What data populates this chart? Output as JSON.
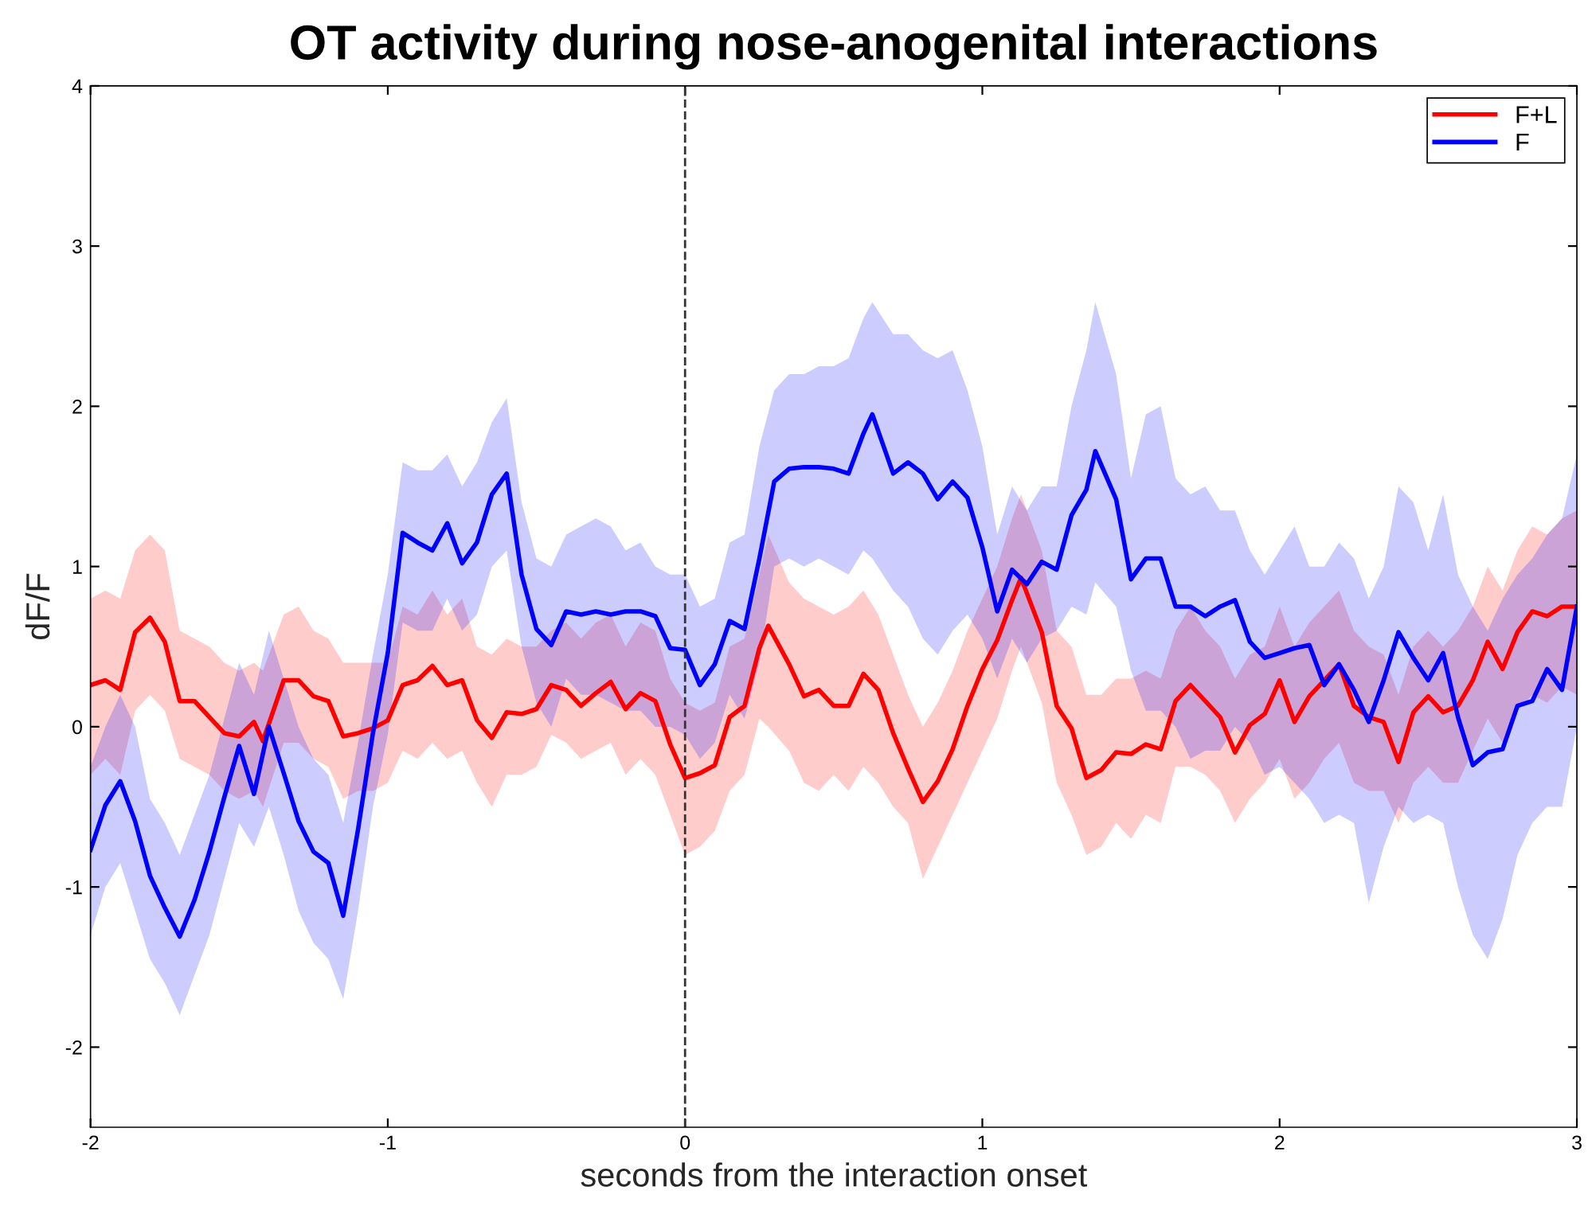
{
  "chart_data": {
    "type": "line",
    "title": "OT activity during nose-anogenital interactions",
    "xlabel": "seconds from the interaction onset",
    "ylabel": "dF/F",
    "xlim": [
      -2,
      3
    ],
    "xticks": [
      -2,
      -1,
      0,
      1,
      2,
      3
    ],
    "ylim": [
      -2.5,
      4
    ],
    "yticks": [
      -2,
      -1,
      0,
      1,
      2,
      3,
      4
    ],
    "grid": false,
    "legend": "top right",
    "line_style": "solid",
    "marker": "none",
    "ref_lines": [
      {
        "axis": "x",
        "value": 0,
        "color": "#333333",
        "line_style": "dashed"
      }
    ],
    "series": [
      {
        "name": "F+L",
        "color": "#ff0000",
        "x": [
          -2,
          -1.95,
          -1.9,
          -1.85,
          -1.8,
          -1.75,
          -1.7,
          -1.65,
          -1.6,
          -1.55,
          -1.5,
          -1.45,
          -1.42,
          -1.35,
          -1.3,
          -1.25,
          -1.2,
          -1.15,
          -1.1,
          -1.05,
          -1,
          -0.95,
          -0.9,
          -0.85,
          -0.8,
          -0.75,
          -0.7,
          -0.65,
          -0.6,
          -0.55,
          -0.5,
          -0.45,
          -0.4,
          -0.35,
          -0.3,
          -0.25,
          -0.2,
          -0.15,
          -0.1,
          -0.05,
          0,
          0.05,
          0.1,
          0.15,
          0.2,
          0.25,
          0.28,
          0.35,
          0.4,
          0.45,
          0.5,
          0.55,
          0.6,
          0.65,
          0.7,
          0.75,
          0.8,
          0.85,
          0.9,
          0.95,
          1,
          1.05,
          1.1,
          1.13,
          1.2,
          1.25,
          1.3,
          1.35,
          1.4,
          1.45,
          1.5,
          1.55,
          1.6,
          1.65,
          1.7,
          1.75,
          1.8,
          1.85,
          1.9,
          1.95,
          2,
          2.05,
          2.1,
          2.15,
          2.2,
          2.25,
          2.3,
          2.35,
          2.4,
          2.45,
          2.5,
          2.55,
          2.6,
          2.65,
          2.7,
          2.75,
          2.8,
          2.85,
          2.9,
          2.95,
          3
        ],
        "values": [
          0.26,
          0.29,
          0.23,
          0.59,
          0.68,
          0.53,
          0.16,
          0.16,
          0.06,
          -0.04,
          -0.06,
          0.03,
          -0.09,
          0.29,
          0.29,
          0.19,
          0.16,
          -0.06,
          -0.04,
          -0.01,
          0.04,
          0.26,
          0.29,
          0.38,
          0.26,
          0.29,
          0.04,
          -0.07,
          0.09,
          0.08,
          0.11,
          0.26,
          0.23,
          0.13,
          0.21,
          0.28,
          0.11,
          0.21,
          0.16,
          -0.11,
          -0.32,
          -0.29,
          -0.24,
          0.06,
          0.13,
          0.49,
          0.63,
          0.39,
          0.19,
          0.23,
          0.13,
          0.13,
          0.33,
          0.23,
          -0.04,
          -0.26,
          -0.47,
          -0.34,
          -0.14,
          0.13,
          0.36,
          0.54,
          0.79,
          0.93,
          0.59,
          0.13,
          -0.01,
          -0.32,
          -0.27,
          -0.16,
          -0.17,
          -0.11,
          -0.14,
          0.16,
          0.26,
          0.16,
          0.06,
          -0.16,
          0.01,
          0.08,
          0.29,
          0.03,
          0.19,
          0.29,
          0.39,
          0.13,
          0.06,
          0.03,
          -0.22,
          0.09,
          0.19,
          0.09,
          0.13,
          0.29,
          0.53,
          0.36,
          0.59,
          0.72,
          0.69,
          0.75,
          0.75
        ],
        "upper": [
          0.8,
          0.85,
          0.8,
          1.1,
          1.2,
          1.1,
          0.6,
          0.55,
          0.5,
          0.4,
          0.35,
          0.4,
          0.35,
          0.7,
          0.75,
          0.6,
          0.55,
          0.4,
          0.4,
          0.4,
          0.4,
          0.75,
          0.7,
          0.85,
          0.7,
          0.8,
          0.5,
          0.45,
          0.55,
          0.5,
          0.5,
          0.6,
          0.65,
          0.55,
          0.65,
          0.7,
          0.5,
          0.65,
          0.6,
          0.3,
          0.15,
          0.1,
          0.15,
          0.5,
          0.55,
          0.95,
          1.2,
          0.9,
          0.8,
          0.75,
          0.7,
          0.75,
          0.85,
          0.7,
          0.45,
          0.2,
          0.0,
          0.15,
          0.35,
          0.6,
          0.8,
          1.0,
          1.3,
          1.45,
          1.1,
          0.6,
          0.5,
          0.2,
          0.2,
          0.3,
          0.3,
          0.35,
          0.3,
          0.6,
          0.75,
          0.6,
          0.5,
          0.3,
          0.45,
          0.5,
          0.75,
          0.5,
          0.65,
          0.75,
          0.85,
          0.6,
          0.5,
          0.45,
          0.2,
          0.5,
          0.6,
          0.5,
          0.6,
          0.75,
          1.0,
          0.85,
          1.1,
          1.25,
          1.2,
          1.3,
          1.35
        ],
        "lower": [
          -0.3,
          -0.2,
          -0.3,
          0.1,
          0.2,
          0.1,
          -0.2,
          -0.25,
          -0.3,
          -0.4,
          -0.45,
          -0.4,
          -0.5,
          -0.1,
          -0.1,
          -0.2,
          -0.25,
          -0.45,
          -0.4,
          -0.4,
          -0.35,
          -0.15,
          -0.2,
          -0.1,
          -0.2,
          -0.15,
          -0.35,
          -0.5,
          -0.3,
          -0.3,
          -0.25,
          -0.05,
          -0.1,
          -0.2,
          -0.15,
          -0.1,
          -0.3,
          -0.2,
          -0.3,
          -0.55,
          -0.8,
          -0.75,
          -0.65,
          -0.4,
          -0.3,
          0.05,
          0.0,
          -0.15,
          -0.35,
          -0.4,
          -0.3,
          -0.4,
          -0.25,
          -0.35,
          -0.5,
          -0.6,
          -0.95,
          -0.75,
          -0.55,
          -0.35,
          -0.15,
          0.05,
          0.35,
          0.5,
          0.15,
          -0.35,
          -0.55,
          -0.8,
          -0.75,
          -0.6,
          -0.7,
          -0.55,
          -0.6,
          -0.25,
          -0.25,
          -0.3,
          -0.4,
          -0.6,
          -0.45,
          -0.35,
          -0.2,
          -0.45,
          -0.35,
          -0.2,
          -0.1,
          -0.35,
          -0.4,
          -0.4,
          -0.6,
          -0.35,
          -0.25,
          -0.35,
          -0.35,
          -0.15,
          0.05,
          -0.1,
          0.1,
          0.2,
          0.15,
          0.25,
          0.2
        ]
      },
      {
        "name": "F",
        "color": "#0000ff",
        "x": [
          -2,
          -1.95,
          -1.9,
          -1.85,
          -1.8,
          -1.75,
          -1.7,
          -1.65,
          -1.6,
          -1.55,
          -1.5,
          -1.45,
          -1.4,
          -1.35,
          -1.3,
          -1.25,
          -1.2,
          -1.15,
          -1.1,
          -1.05,
          -1,
          -0.95,
          -0.9,
          -0.85,
          -0.8,
          -0.75,
          -0.7,
          -0.65,
          -0.6,
          -0.55,
          -0.5,
          -0.45,
          -0.4,
          -0.35,
          -0.3,
          -0.25,
          -0.2,
          -0.15,
          -0.1,
          -0.05,
          0,
          0.05,
          0.1,
          0.15,
          0.2,
          0.25,
          0.3,
          0.35,
          0.4,
          0.45,
          0.5,
          0.55,
          0.6,
          0.63,
          0.7,
          0.75,
          0.8,
          0.85,
          0.9,
          0.95,
          1,
          1.05,
          1.1,
          1.15,
          1.2,
          1.25,
          1.3,
          1.35,
          1.38,
          1.45,
          1.5,
          1.55,
          1.6,
          1.65,
          1.7,
          1.75,
          1.8,
          1.85,
          1.9,
          1.95,
          2,
          2.05,
          2.1,
          2.15,
          2.2,
          2.25,
          2.3,
          2.35,
          2.4,
          2.45,
          2.5,
          2.55,
          2.6,
          2.65,
          2.7,
          2.75,
          2.8,
          2.85,
          2.9,
          2.95,
          3
        ],
        "values": [
          -0.77,
          -0.49,
          -0.34,
          -0.59,
          -0.93,
          -1.13,
          -1.31,
          -1.08,
          -0.78,
          -0.44,
          -0.12,
          -0.42,
          0.0,
          -0.29,
          -0.59,
          -0.78,
          -0.85,
          -1.18,
          -0.64,
          -0.04,
          0.46,
          1.21,
          1.15,
          1.1,
          1.27,
          1.02,
          1.15,
          1.45,
          1.58,
          0.95,
          0.61,
          0.51,
          0.72,
          0.7,
          0.72,
          0.7,
          0.72,
          0.72,
          0.69,
          0.49,
          0.48,
          0.26,
          0.39,
          0.66,
          0.61,
          1.05,
          1.53,
          1.61,
          1.62,
          1.62,
          1.61,
          1.58,
          1.83,
          1.95,
          1.58,
          1.65,
          1.58,
          1.42,
          1.53,
          1.43,
          1.12,
          0.72,
          0.98,
          0.89,
          1.03,
          0.98,
          1.32,
          1.48,
          1.72,
          1.42,
          0.92,
          1.05,
          1.05,
          0.75,
          0.75,
          0.69,
          0.75,
          0.79,
          0.53,
          0.43,
          0.46,
          0.49,
          0.51,
          0.26,
          0.39,
          0.23,
          0.03,
          0.29,
          0.59,
          0.43,
          0.29,
          0.46,
          0.06,
          -0.24,
          -0.16,
          -0.14,
          0.13,
          0.16,
          0.36,
          0.23,
          0.75
        ],
        "upper": [
          -0.25,
          0.0,
          0.2,
          0.0,
          -0.45,
          -0.6,
          -0.8,
          -0.55,
          -0.3,
          0.05,
          0.4,
          0.2,
          0.6,
          0.3,
          0.0,
          -0.2,
          -0.3,
          -0.6,
          -0.1,
          0.45,
          0.95,
          1.65,
          1.6,
          1.6,
          1.7,
          1.5,
          1.65,
          1.9,
          2.05,
          1.4,
          1.05,
          1.0,
          1.2,
          1.25,
          1.3,
          1.25,
          1.1,
          1.15,
          1.0,
          0.95,
          0.95,
          0.75,
          0.8,
          1.15,
          1.2,
          1.75,
          2.1,
          2.2,
          2.2,
          2.25,
          2.25,
          2.3,
          2.55,
          2.65,
          2.45,
          2.45,
          2.35,
          2.3,
          2.35,
          2.1,
          1.75,
          1.2,
          1.5,
          1.35,
          1.5,
          1.5,
          2.0,
          2.35,
          2.65,
          2.2,
          1.55,
          1.95,
          2.0,
          1.55,
          1.45,
          1.5,
          1.35,
          1.35,
          1.1,
          0.95,
          1.1,
          1.25,
          1.0,
          1.0,
          1.15,
          1.05,
          0.8,
          1.0,
          1.5,
          1.4,
          1.1,
          1.45,
          0.95,
          0.75,
          0.6,
          0.8,
          0.95,
          1.05,
          1.2,
          1.3,
          1.7
        ],
        "lower": [
          -1.3,
          -1.0,
          -0.85,
          -1.15,
          -1.45,
          -1.6,
          -1.8,
          -1.55,
          -1.3,
          -0.95,
          -0.6,
          -0.75,
          -0.5,
          -0.8,
          -1.15,
          -1.35,
          -1.45,
          -1.7,
          -1.15,
          -0.5,
          -0.05,
          0.65,
          0.6,
          0.6,
          0.8,
          0.6,
          0.7,
          1.0,
          1.1,
          0.5,
          0.15,
          0.0,
          0.3,
          0.2,
          0.2,
          0.15,
          0.1,
          0.1,
          0.0,
          0.0,
          -0.05,
          -0.2,
          -0.1,
          0.2,
          0.05,
          0.4,
          1.0,
          1.05,
          1.0,
          1.05,
          1.0,
          0.95,
          1.1,
          1.05,
          0.85,
          0.75,
          0.55,
          0.45,
          0.6,
          0.7,
          0.55,
          0.3,
          0.55,
          0.4,
          0.55,
          0.6,
          0.75,
          0.7,
          0.9,
          0.75,
          0.35,
          0.1,
          0.1,
          0.0,
          -0.2,
          -0.15,
          -0.15,
          0.0,
          -0.1,
          -0.3,
          -0.25,
          -0.35,
          -0.45,
          -0.6,
          -0.55,
          -0.6,
          -1.1,
          -0.75,
          -0.5,
          -0.6,
          -0.55,
          -0.6,
          -1.0,
          -1.3,
          -1.45,
          -1.2,
          -0.8,
          -0.6,
          -0.5,
          -0.5,
          0.0
        ]
      }
    ]
  }
}
